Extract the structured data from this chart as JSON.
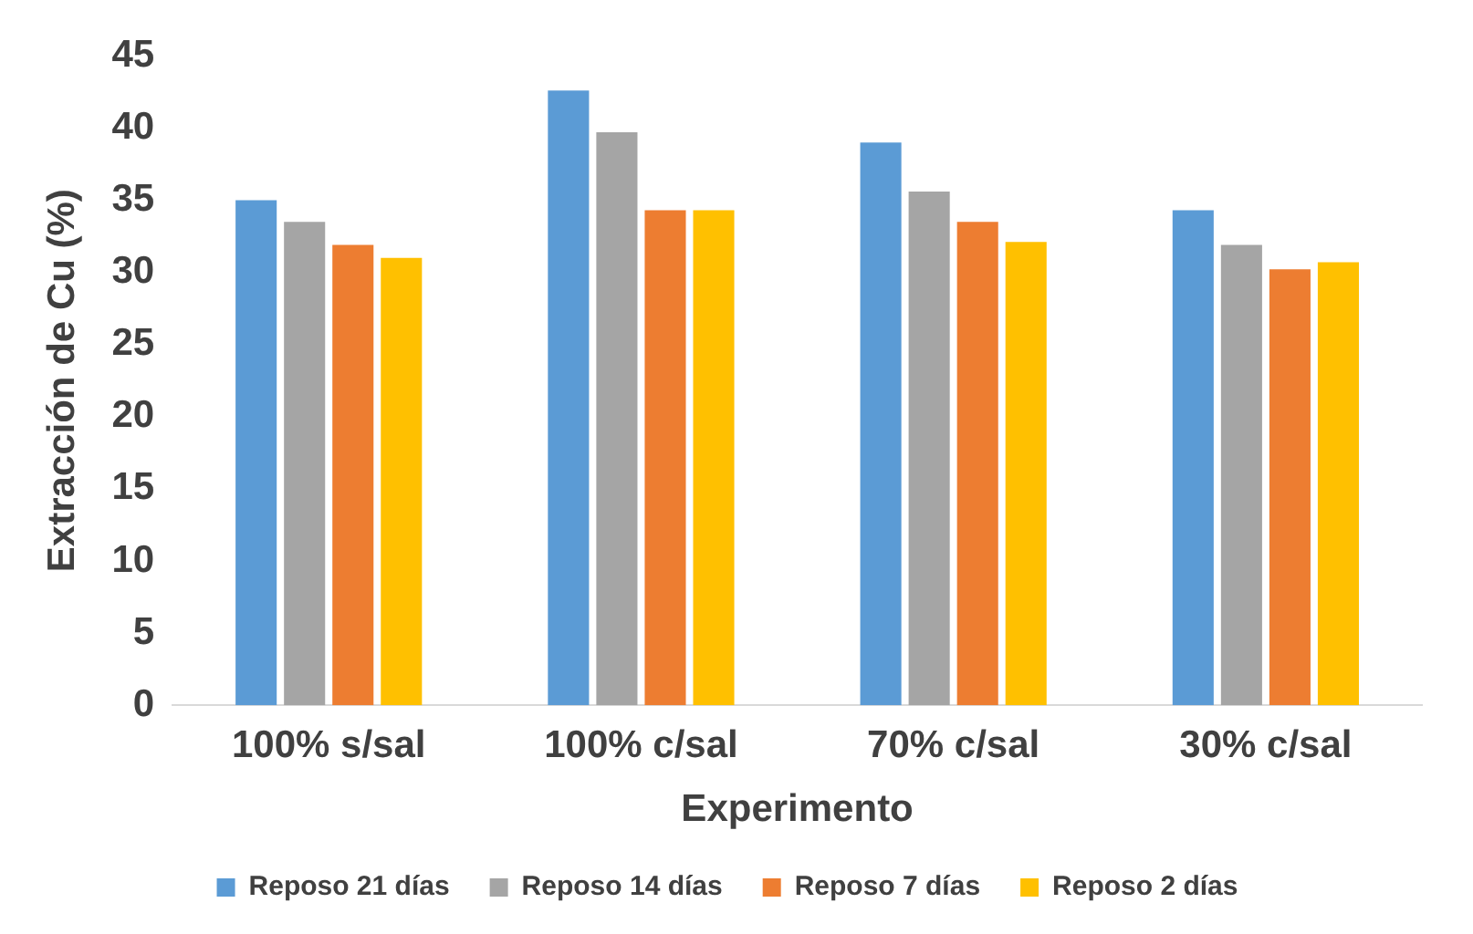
{
  "chart_data": {
    "type": "bar",
    "xlabel": "Experimento",
    "ylabel": "Extracción de Cu (%)",
    "categories": [
      "100% s/sal",
      "100% c/sal",
      "70% c/sal",
      "30% c/sal"
    ],
    "series": [
      {
        "name": "Reposo 21 días",
        "color": "#5b9bd5",
        "values": [
          35.0,
          42.6,
          39.0,
          34.3
        ]
      },
      {
        "name": "Reposo 14 días",
        "color": "#a5a5a5",
        "values": [
          33.5,
          39.7,
          35.6,
          31.9
        ]
      },
      {
        "name": "Reposo 7 días",
        "color": "#ed7d31",
        "values": [
          31.9,
          34.3,
          33.5,
          30.2
        ]
      },
      {
        "name": "Reposo 2 días",
        "color": "#ffc000",
        "values": [
          31.0,
          34.3,
          32.1,
          30.7
        ]
      }
    ],
    "ylim": [
      0,
      45
    ],
    "yticks": [
      0,
      5,
      10,
      15,
      20,
      25,
      30,
      35,
      40,
      45
    ],
    "grid": false,
    "legend": "bottom"
  }
}
